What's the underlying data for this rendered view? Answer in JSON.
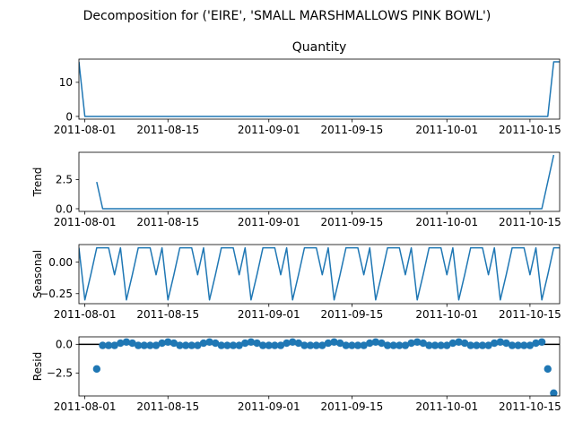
{
  "figure": {
    "suptitle": "Decomposition for ('EIRE', 'SMALL MARSHMALLOWS PINK BOWL')",
    "line_color": "#1f77b4"
  },
  "chart_data": [
    {
      "type": "line",
      "name": "observed",
      "title": "Quantity",
      "ylabel": "",
      "x_start": "2011-08-01",
      "x_end": "2011-10-20",
      "xlim": [
        "2011-07-31",
        "2011-10-20"
      ],
      "x_ticks": [
        "2011-08-01",
        "2011-08-15",
        "2011-09-01",
        "2011-09-15",
        "2011-10-01",
        "2011-10-15"
      ],
      "ylim": [
        -0.8,
        16.8
      ],
      "y_ticks": [
        0,
        10
      ],
      "y_tick_labels": [
        "0",
        "10"
      ],
      "points": [
        [
          "2011-07-31",
          16
        ],
        [
          "2011-08-01",
          0
        ],
        [
          "2011-10-18",
          0
        ],
        [
          "2011-10-19",
          16
        ],
        [
          "2011-10-20",
          16
        ]
      ]
    },
    {
      "type": "line",
      "name": "trend",
      "title": "",
      "ylabel": "Trend",
      "xlim": [
        "2011-07-31",
        "2011-10-20"
      ],
      "x_ticks": [
        "2011-08-01",
        "2011-08-15",
        "2011-09-01",
        "2011-09-15",
        "2011-10-01",
        "2011-10-15"
      ],
      "ylim": [
        -0.23,
        4.83
      ],
      "y_ticks": [
        0,
        2.5
      ],
      "y_tick_labels": [
        "0.0",
        "2.5"
      ],
      "points": [
        [
          "2011-08-03",
          2.29
        ],
        [
          "2011-08-04",
          0
        ],
        [
          "2011-10-17",
          0
        ],
        [
          "2011-10-19",
          4.6
        ]
      ]
    },
    {
      "type": "line",
      "name": "seasonal",
      "title": "",
      "ylabel": "Seasonal",
      "xlim": [
        "2011-07-31",
        "2011-10-20"
      ],
      "x_ticks": [
        "2011-08-01",
        "2011-08-15",
        "2011-09-01",
        "2011-09-15",
        "2011-10-01",
        "2011-10-15"
      ],
      "ylim": [
        -0.33,
        0.14
      ],
      "y_ticks": [
        0,
        -0.25
      ],
      "y_tick_labels": [
        "0.00",
        "−0.25"
      ],
      "period": 7,
      "first_date": "2011-07-31",
      "last_date": "2011-10-20",
      "pattern": [
        0.1143,
        -0.3,
        -0.1,
        0.1143,
        0.1143,
        0.1143,
        -0.1
      ]
    },
    {
      "type": "scatter",
      "name": "resid",
      "title": "",
      "ylabel": "Resid",
      "xlim": [
        "2011-07-31",
        "2011-10-20"
      ],
      "x_ticks": [
        "2011-08-01",
        "2011-08-15",
        "2011-09-01",
        "2011-09-15",
        "2011-10-01",
        "2011-10-15"
      ],
      "ylim": [
        -4.5,
        0.65
      ],
      "y_ticks": [
        0,
        -2.5
      ],
      "y_tick_labels": [
        "0.0",
        "−2.5"
      ],
      "zero_line": true,
      "first_date": "2011-08-03",
      "last_date": "2011-10-19",
      "pattern": [
        -0.1,
        -0.1,
        -0.1,
        -0.1,
        0.1,
        0.2,
        0.1
      ],
      "overrides": [
        [
          "2011-08-03",
          -2.15
        ],
        [
          "2011-10-18",
          -2.15
        ],
        [
          "2011-10-19",
          -4.25
        ]
      ]
    }
  ]
}
